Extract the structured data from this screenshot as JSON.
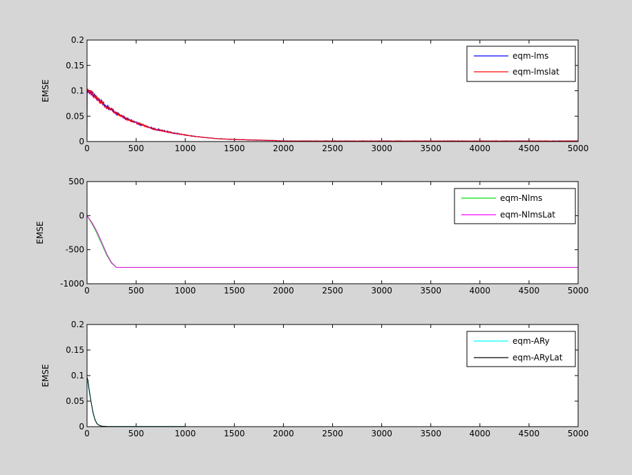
{
  "figure": {
    "background": "#d6d6d6",
    "axes_background": "#ffffff"
  },
  "chart_data": [
    {
      "type": "line",
      "title": "",
      "xlabel": "",
      "ylabel": "EMSE",
      "xlim": [
        0,
        5000
      ],
      "ylim": [
        0,
        0.2
      ],
      "xticks": [
        0,
        500,
        1000,
        1500,
        2000,
        2500,
        3000,
        3500,
        4000,
        4500,
        5000
      ],
      "yticks": [
        0,
        0.05,
        0.1,
        0.15,
        0.2
      ],
      "xtick_labels": [
        "0",
        "500",
        "1000",
        "1500",
        "2000",
        "2500",
        "3000",
        "3500",
        "4000",
        "4500",
        "5000"
      ],
      "ytick_labels": [
        "0",
        "0.05",
        "0.1",
        "0.15",
        "0.2"
      ],
      "grid": false,
      "legend_position": "top-right",
      "noise": 0.006,
      "series": [
        {
          "name": "eqm-lms",
          "color": "#0000ff",
          "x": [
            0,
            1,
            50,
            100,
            200,
            300,
            400,
            500,
            600,
            700,
            800,
            900,
            1000,
            1100,
            1200,
            1300,
            1400,
            1500,
            1700,
            1900,
            2000,
            2500,
            3000,
            3500,
            4000,
            4500,
            5000
          ],
          "y": [
            0,
            0.1,
            0.095,
            0.085,
            0.069,
            0.056,
            0.045,
            0.037,
            0.03,
            0.024,
            0.02,
            0.016,
            0.013,
            0.01,
            0.008,
            0.006,
            0.005,
            0.004,
            0.003,
            0.002,
            0.001,
            0.001,
            0.001,
            0.001,
            0.001,
            0.001,
            0.001
          ]
        },
        {
          "name": "eqm-lmslat",
          "color": "#ff0000",
          "x": [
            0,
            1,
            50,
            100,
            200,
            300,
            400,
            500,
            600,
            700,
            800,
            900,
            1000,
            1100,
            1200,
            1300,
            1400,
            1500,
            1700,
            1900,
            2000,
            2500,
            3000,
            3500,
            4000,
            4500,
            5000
          ],
          "y": [
            0,
            0.1,
            0.095,
            0.085,
            0.069,
            0.056,
            0.045,
            0.037,
            0.03,
            0.024,
            0.02,
            0.016,
            0.013,
            0.01,
            0.008,
            0.006,
            0.005,
            0.004,
            0.003,
            0.002,
            0.001,
            0.001,
            0.001,
            0.001,
            0.001,
            0.001,
            0.001
          ]
        }
      ]
    },
    {
      "type": "line",
      "title": "",
      "xlabel": "",
      "ylabel": "EMSE",
      "xlim": [
        0,
        5000
      ],
      "ylim": [
        -1000,
        500
      ],
      "xticks": [
        0,
        500,
        1000,
        1500,
        2000,
        2500,
        3000,
        3500,
        4000,
        4500,
        5000
      ],
      "yticks": [
        -1000,
        -500,
        0,
        500
      ],
      "xtick_labels": [
        "0",
        "500",
        "1000",
        "1500",
        "2000",
        "2500",
        "3000",
        "3500",
        "4000",
        "4500",
        "5000"
      ],
      "ytick_labels": [
        "-1000",
        "-500",
        "0",
        "500"
      ],
      "grid": false,
      "legend_position": "top-right",
      "noise": 0,
      "series": [
        {
          "name": "eqm-Nlms",
          "color": "#00dd00",
          "x": [
            0,
            50,
            100,
            150,
            200,
            250,
            300,
            5000
          ],
          "y": [
            0,
            -120,
            -260,
            -420,
            -580,
            -700,
            -760,
            -760
          ]
        },
        {
          "name": "eqm-NlmsLat",
          "color": "#ff00ff",
          "x": [
            0,
            50,
            100,
            150,
            200,
            250,
            300,
            5000
          ],
          "y": [
            0,
            -100,
            -230,
            -390,
            -560,
            -690,
            -760,
            -760
          ]
        }
      ]
    },
    {
      "type": "line",
      "title": "",
      "xlabel": "",
      "ylabel": "EMSE",
      "xlim": [
        0,
        5000
      ],
      "ylim": [
        0,
        0.2
      ],
      "xticks": [
        0,
        500,
        1000,
        1500,
        2000,
        2500,
        3000,
        3500,
        4000,
        4500,
        5000
      ],
      "yticks": [
        0,
        0.05,
        0.1,
        0.15,
        0.2
      ],
      "xtick_labels": [
        "0",
        "500",
        "1000",
        "1500",
        "2000",
        "2500",
        "3000",
        "3500",
        "4000",
        "4500",
        "5000"
      ],
      "ytick_labels": [
        "0",
        "0.05",
        "0.1",
        "0.15",
        "0.2"
      ],
      "grid": false,
      "legend_position": "top-right",
      "noise": 0,
      "series": [
        {
          "name": "eqm-ARy",
          "color": "#00ffff",
          "x": [
            0,
            10,
            20,
            40,
            60,
            80,
            100,
            120,
            150,
            200,
            300,
            1000
          ],
          "y": [
            0.09,
            0.085,
            0.07,
            0.05,
            0.03,
            0.015,
            0.007,
            0.003,
            0.001,
            0.0005,
            0.0003,
            0.0003
          ]
        },
        {
          "name": "eqm-ARyLat",
          "color": "#000000",
          "x": [
            0,
            10,
            20,
            40,
            60,
            80,
            100,
            120,
            150,
            200,
            300,
            1000
          ],
          "y": [
            0.097,
            0.09,
            0.075,
            0.05,
            0.028,
            0.014,
            0.006,
            0.003,
            0.001,
            0.0005,
            0.0003,
            0.0003
          ]
        }
      ]
    }
  ]
}
